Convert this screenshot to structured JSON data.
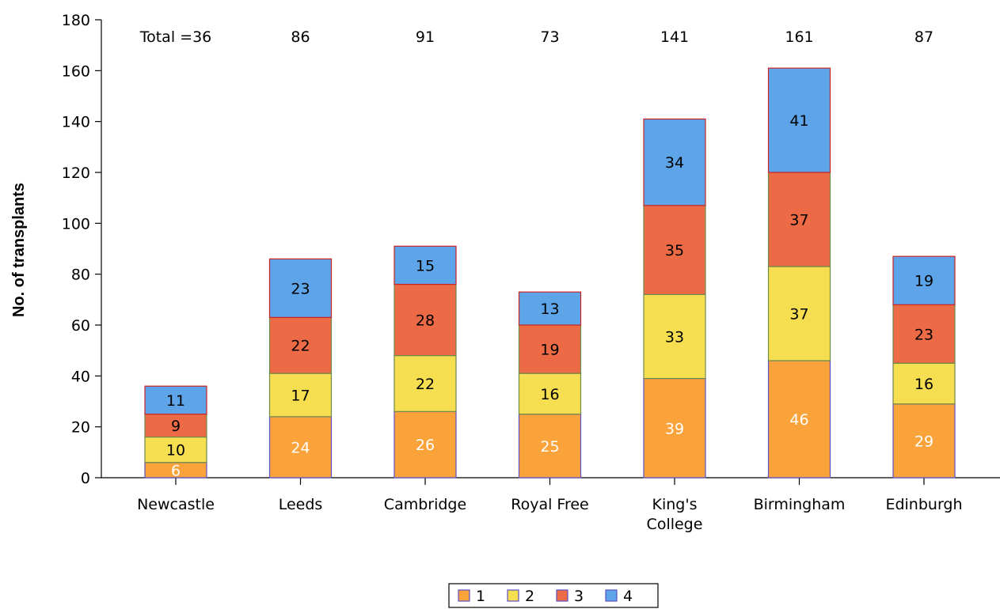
{
  "chart_data": {
    "type": "bar",
    "stacked": true,
    "title": "",
    "xlabel": "",
    "ylabel": "No. of transplants",
    "ylim": [
      0,
      180
    ],
    "yticks": [
      0,
      20,
      40,
      60,
      80,
      100,
      120,
      140,
      160,
      180
    ],
    "grid": false,
    "legend_position": "bottom-center",
    "categories": [
      "Newcastle",
      "Leeds",
      "Cambridge",
      "Royal Free",
      "King's College",
      "Birmingham",
      "Edinburgh"
    ],
    "category_labels": [
      [
        "Newcastle"
      ],
      [
        "Leeds"
      ],
      [
        "Cambridge"
      ],
      [
        "Royal Free"
      ],
      [
        "King's",
        "College"
      ],
      [
        "Birmingham"
      ],
      [
        "Edinburgh"
      ]
    ],
    "totals": [
      36,
      86,
      91,
      73,
      141,
      161,
      87
    ],
    "total_prefix": "Total =",
    "series": [
      {
        "name": "1",
        "color": "#FBA33B",
        "border": "#5A50C8",
        "label_color": "#FFFFFF",
        "values": [
          6,
          24,
          26,
          25,
          39,
          46,
          29
        ]
      },
      {
        "name": "2",
        "color": "#F5DE50",
        "border": "#6E8A4C",
        "label_color": "#000000",
        "values": [
          10,
          17,
          22,
          16,
          33,
          37,
          16
        ]
      },
      {
        "name": "3",
        "color": "#EC6A45",
        "border": "#6E8A4C",
        "label_color": "#000000",
        "values": [
          9,
          22,
          28,
          19,
          35,
          37,
          23
        ]
      },
      {
        "name": "4",
        "color": "#5DA5E8",
        "border": "#CC2222",
        "label_color": "#000000",
        "values": [
          11,
          23,
          15,
          13,
          34,
          41,
          19
        ]
      }
    ]
  }
}
